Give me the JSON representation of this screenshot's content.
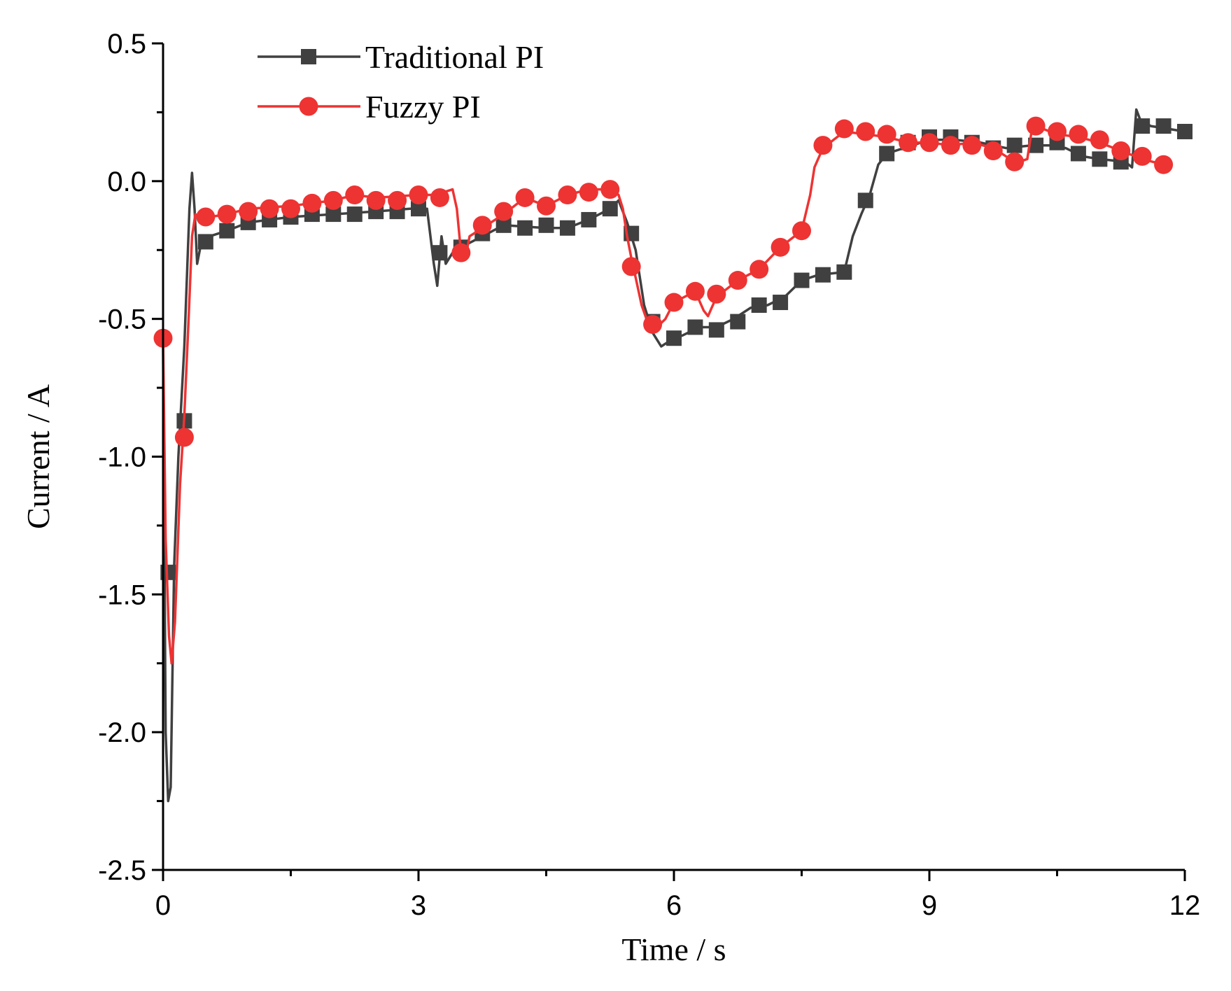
{
  "chart_data": {
    "type": "line",
    "title": "",
    "xlabel": "Time / s",
    "ylabel": "Current / A",
    "xlim": [
      0,
      12
    ],
    "ylim": [
      -2.5,
      0.5
    ],
    "xticks": [
      0,
      3,
      6,
      9,
      12
    ],
    "xtick_labels": [
      "0",
      "3",
      "6",
      "9",
      "12"
    ],
    "xminor": [
      1.5,
      4.5,
      7.5,
      10.5
    ],
    "yticks": [
      0.5,
      0.0,
      -0.5,
      -1.0,
      -1.5,
      -2.0,
      -2.5
    ],
    "ytick_labels": [
      "0.5",
      "0.0",
      "-0.5",
      "-1.0",
      "-1.5",
      "-2.0",
      "-2.5"
    ],
    "yminor": [
      0.25,
      -0.25,
      -0.75,
      -1.25,
      -1.75,
      -2.25
    ],
    "grid": false,
    "legend_position": "top-left",
    "series": [
      {
        "name": "Traditional PI",
        "color": "#404040",
        "marker": "square",
        "line": [
          [
            0.0,
            -0.6
          ],
          [
            0.03,
            -2.0
          ],
          [
            0.06,
            -2.25
          ],
          [
            0.09,
            -2.2
          ],
          [
            0.13,
            -1.4
          ],
          [
            0.18,
            -1.0
          ],
          [
            0.25,
            -0.6
          ],
          [
            0.31,
            -0.1
          ],
          [
            0.34,
            0.03
          ],
          [
            0.37,
            -0.1
          ],
          [
            0.4,
            -0.3
          ],
          [
            0.45,
            -0.22
          ],
          [
            0.55,
            -0.2
          ],
          [
            0.75,
            -0.18
          ],
          [
            1.0,
            -0.15
          ],
          [
            1.5,
            -0.13
          ],
          [
            2.0,
            -0.12
          ],
          [
            2.5,
            -0.11
          ],
          [
            2.9,
            -0.1
          ],
          [
            3.1,
            -0.1
          ],
          [
            3.18,
            -0.3
          ],
          [
            3.22,
            -0.38
          ],
          [
            3.27,
            -0.2
          ],
          [
            3.32,
            -0.3
          ],
          [
            3.4,
            -0.26
          ],
          [
            3.5,
            -0.24
          ],
          [
            3.75,
            -0.2
          ],
          [
            4.0,
            -0.16
          ],
          [
            4.5,
            -0.17
          ],
          [
            4.75,
            -0.17
          ],
          [
            5.0,
            -0.14
          ],
          [
            5.25,
            -0.1
          ],
          [
            5.35,
            -0.07
          ],
          [
            5.45,
            -0.15
          ],
          [
            5.55,
            -0.25
          ],
          [
            5.65,
            -0.45
          ],
          [
            5.75,
            -0.55
          ],
          [
            5.85,
            -0.6
          ],
          [
            5.95,
            -0.58
          ],
          [
            6.1,
            -0.56
          ],
          [
            6.3,
            -0.53
          ],
          [
            6.5,
            -0.53
          ],
          [
            6.7,
            -0.5
          ],
          [
            6.9,
            -0.46
          ],
          [
            7.1,
            -0.45
          ],
          [
            7.3,
            -0.42
          ],
          [
            7.5,
            -0.36
          ],
          [
            7.7,
            -0.34
          ],
          [
            8.0,
            -0.33
          ],
          [
            8.1,
            -0.2
          ],
          [
            8.2,
            -0.12
          ],
          [
            8.3,
            -0.05
          ],
          [
            8.4,
            0.06
          ],
          [
            8.5,
            0.1
          ],
          [
            8.7,
            0.12
          ],
          [
            9.0,
            0.15
          ],
          [
            9.3,
            0.15
          ],
          [
            9.6,
            0.14
          ],
          [
            9.9,
            0.12
          ],
          [
            10.2,
            0.13
          ],
          [
            10.4,
            0.13
          ],
          [
            10.6,
            0.12
          ],
          [
            10.8,
            0.09
          ],
          [
            11.0,
            0.08
          ],
          [
            11.3,
            0.07
          ],
          [
            11.38,
            0.05
          ],
          [
            11.43,
            0.26
          ],
          [
            11.48,
            0.22
          ],
          [
            11.6,
            0.2
          ],
          [
            11.8,
            0.19
          ],
          [
            12.0,
            0.18
          ]
        ],
        "markers": [
          [
            0.06,
            -1.42
          ],
          [
            0.25,
            -0.87
          ],
          [
            0.5,
            -0.22
          ],
          [
            0.75,
            -0.18
          ],
          [
            1.0,
            -0.15
          ],
          [
            1.25,
            -0.14
          ],
          [
            1.5,
            -0.13
          ],
          [
            1.75,
            -0.12
          ],
          [
            2.0,
            -0.12
          ],
          [
            2.25,
            -0.12
          ],
          [
            2.5,
            -0.11
          ],
          [
            2.75,
            -0.11
          ],
          [
            3.0,
            -0.1
          ],
          [
            3.25,
            -0.26
          ],
          [
            3.5,
            -0.24
          ],
          [
            3.75,
            -0.19
          ],
          [
            4.0,
            -0.16
          ],
          [
            4.25,
            -0.17
          ],
          [
            4.5,
            -0.16
          ],
          [
            4.75,
            -0.17
          ],
          [
            5.0,
            -0.14
          ],
          [
            5.25,
            -0.1
          ],
          [
            5.5,
            -0.19
          ],
          [
            5.75,
            -0.51
          ],
          [
            6.0,
            -0.57
          ],
          [
            6.25,
            -0.53
          ],
          [
            6.5,
            -0.54
          ],
          [
            6.75,
            -0.51
          ],
          [
            7.0,
            -0.45
          ],
          [
            7.25,
            -0.44
          ],
          [
            7.5,
            -0.36
          ],
          [
            7.75,
            -0.34
          ],
          [
            8.0,
            -0.33
          ],
          [
            8.25,
            -0.07
          ],
          [
            8.5,
            0.1
          ],
          [
            8.75,
            0.14
          ],
          [
            9.0,
            0.16
          ],
          [
            9.25,
            0.16
          ],
          [
            9.5,
            0.14
          ],
          [
            9.75,
            0.12
          ],
          [
            10.0,
            0.13
          ],
          [
            10.25,
            0.13
          ],
          [
            10.5,
            0.14
          ],
          [
            10.75,
            0.1
          ],
          [
            11.0,
            0.08
          ],
          [
            11.25,
            0.07
          ],
          [
            11.5,
            0.2
          ],
          [
            11.75,
            0.2
          ],
          [
            12.0,
            0.18
          ]
        ]
      },
      {
        "name": "Fuzzy PI",
        "color": "#ee3333",
        "marker": "circle",
        "line": [
          [
            0.0,
            -0.57
          ],
          [
            0.03,
            -1.3
          ],
          [
            0.07,
            -1.65
          ],
          [
            0.1,
            -1.75
          ],
          [
            0.14,
            -1.6
          ],
          [
            0.2,
            -1.1
          ],
          [
            0.25,
            -0.85
          ],
          [
            0.3,
            -0.5
          ],
          [
            0.34,
            -0.2
          ],
          [
            0.38,
            -0.12
          ],
          [
            0.45,
            -0.14
          ],
          [
            0.55,
            -0.13
          ],
          [
            0.75,
            -0.12
          ],
          [
            1.0,
            -0.1
          ],
          [
            1.5,
            -0.09
          ],
          [
            2.0,
            -0.07
          ],
          [
            2.25,
            -0.05
          ],
          [
            2.5,
            -0.06
          ],
          [
            3.0,
            -0.05
          ],
          [
            3.2,
            -0.05
          ],
          [
            3.4,
            -0.03
          ],
          [
            3.45,
            -0.1
          ],
          [
            3.5,
            -0.26
          ],
          [
            3.55,
            -0.28
          ],
          [
            3.6,
            -0.2
          ],
          [
            3.75,
            -0.17
          ],
          [
            4.0,
            -0.12
          ],
          [
            4.25,
            -0.06
          ],
          [
            4.5,
            -0.09
          ],
          [
            4.75,
            -0.05
          ],
          [
            5.0,
            -0.03
          ],
          [
            5.25,
            -0.03
          ],
          [
            5.35,
            -0.05
          ],
          [
            5.4,
            -0.1
          ],
          [
            5.45,
            -0.2
          ],
          [
            5.5,
            -0.28
          ],
          [
            5.55,
            -0.35
          ],
          [
            5.62,
            -0.45
          ],
          [
            5.7,
            -0.52
          ],
          [
            5.8,
            -0.53
          ],
          [
            5.9,
            -0.5
          ],
          [
            6.0,
            -0.44
          ],
          [
            6.25,
            -0.4
          ],
          [
            6.35,
            -0.47
          ],
          [
            6.4,
            -0.49
          ],
          [
            6.5,
            -0.42
          ],
          [
            6.75,
            -0.36
          ],
          [
            7.0,
            -0.32
          ],
          [
            7.25,
            -0.24
          ],
          [
            7.5,
            -0.18
          ],
          [
            7.6,
            -0.05
          ],
          [
            7.65,
            0.05
          ],
          [
            7.75,
            0.12
          ],
          [
            8.0,
            0.18
          ],
          [
            8.25,
            0.17
          ],
          [
            8.5,
            0.16
          ],
          [
            8.75,
            0.14
          ],
          [
            9.0,
            0.14
          ],
          [
            9.25,
            0.13
          ],
          [
            9.5,
            0.14
          ],
          [
            9.75,
            0.12
          ],
          [
            9.95,
            0.08
          ],
          [
            10.05,
            0.07
          ],
          [
            10.15,
            0.08
          ],
          [
            10.2,
            0.18
          ],
          [
            10.25,
            0.2
          ],
          [
            10.5,
            0.17
          ],
          [
            10.75,
            0.16
          ],
          [
            11.0,
            0.14
          ],
          [
            11.25,
            0.11
          ],
          [
            11.5,
            0.08
          ],
          [
            11.75,
            0.06
          ]
        ],
        "markers": [
          [
            0.0,
            -0.57
          ],
          [
            0.25,
            -0.93
          ],
          [
            0.5,
            -0.13
          ],
          [
            0.75,
            -0.12
          ],
          [
            1.0,
            -0.11
          ],
          [
            1.25,
            -0.1
          ],
          [
            1.5,
            -0.1
          ],
          [
            1.75,
            -0.08
          ],
          [
            2.0,
            -0.07
          ],
          [
            2.25,
            -0.05
          ],
          [
            2.5,
            -0.07
          ],
          [
            2.75,
            -0.07
          ],
          [
            3.0,
            -0.05
          ],
          [
            3.25,
            -0.06
          ],
          [
            3.5,
            -0.26
          ],
          [
            3.75,
            -0.16
          ],
          [
            4.0,
            -0.11
          ],
          [
            4.25,
            -0.06
          ],
          [
            4.5,
            -0.09
          ],
          [
            4.75,
            -0.05
          ],
          [
            5.0,
            -0.04
          ],
          [
            5.25,
            -0.03
          ],
          [
            5.5,
            -0.31
          ],
          [
            5.75,
            -0.52
          ],
          [
            6.0,
            -0.44
          ],
          [
            6.25,
            -0.4
          ],
          [
            6.5,
            -0.41
          ],
          [
            6.75,
            -0.36
          ],
          [
            7.0,
            -0.32
          ],
          [
            7.25,
            -0.24
          ],
          [
            7.5,
            -0.18
          ],
          [
            7.75,
            0.13
          ],
          [
            8.0,
            0.19
          ],
          [
            8.25,
            0.18
          ],
          [
            8.5,
            0.17
          ],
          [
            8.75,
            0.14
          ],
          [
            9.0,
            0.14
          ],
          [
            9.25,
            0.13
          ],
          [
            9.5,
            0.13
          ],
          [
            9.75,
            0.11
          ],
          [
            10.0,
            0.07
          ],
          [
            10.25,
            0.2
          ],
          [
            10.5,
            0.18
          ],
          [
            10.75,
            0.17
          ],
          [
            11.0,
            0.15
          ],
          [
            11.25,
            0.11
          ],
          [
            11.5,
            0.09
          ],
          [
            11.75,
            0.06
          ]
        ]
      }
    ]
  }
}
